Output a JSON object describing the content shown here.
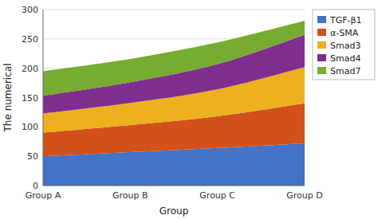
{
  "chart_data": {
    "type": "area",
    "stacked": true,
    "categories": [
      "Group A",
      "Group B",
      "Group C",
      "Group D"
    ],
    "series": [
      {
        "name": "TGF-β1",
        "color": "#4472C4",
        "values": [
          50,
          57,
          64,
          72
        ]
      },
      {
        "name": "α-SMA",
        "color": "#D2501A",
        "values": [
          40,
          46,
          54,
          68
        ]
      },
      {
        "name": "Smad3",
        "color": "#EDB120",
        "values": [
          33,
          38,
          46,
          62
        ]
      },
      {
        "name": "Smad4",
        "color": "#7E2F8E",
        "values": [
          30,
          35,
          43,
          55
        ]
      },
      {
        "name": "Smad7",
        "color": "#77AC30",
        "values": [
          42,
          40,
          37,
          24
        ]
      }
    ],
    "xlabel": "Group",
    "ylabel": "The numerical",
    "ylim": [
      0,
      300
    ],
    "yticks": [
      0,
      50,
      100,
      150,
      200,
      250,
      300
    ],
    "grid": true,
    "legend": "upper right"
  }
}
